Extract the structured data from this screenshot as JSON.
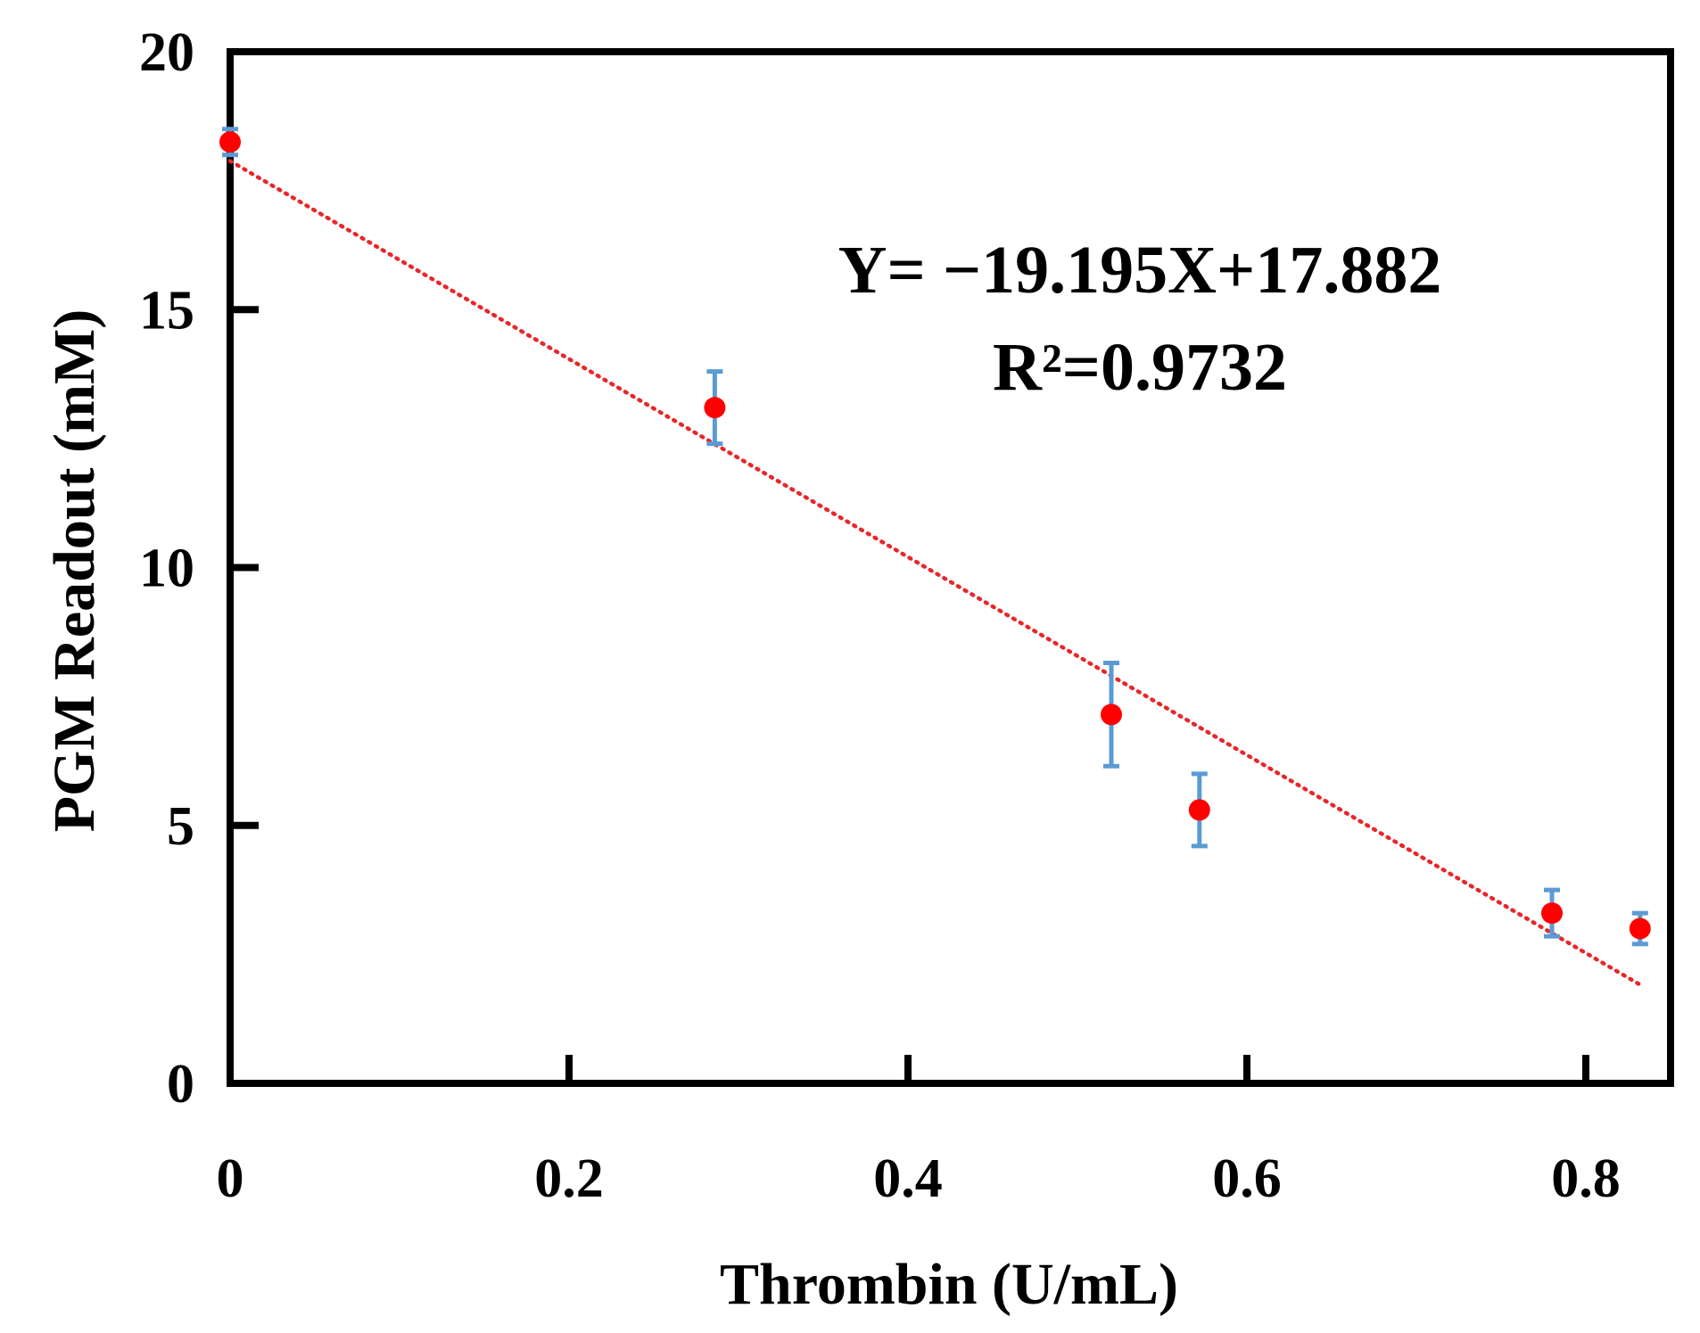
{
  "chart_data": {
    "type": "scatter",
    "xlabel": "Thrombin (U/mL)",
    "ylabel": "PGM Readout (mM)",
    "xlim": [
      0,
      0.85
    ],
    "ylim": [
      0,
      20
    ],
    "x_ticks": [
      0,
      0.2,
      0.4,
      0.6,
      0.8
    ],
    "x_tick_labels": [
      "0",
      "0.2",
      "0.4",
      "0.6",
      "0.8"
    ],
    "y_ticks": [
      0,
      5,
      10,
      15,
      20
    ],
    "y_tick_labels": [
      "0",
      "5",
      "10",
      "15",
      "20"
    ],
    "series": [
      {
        "name": "PGM readout",
        "x": [
          0,
          0.286,
          0.52,
          0.572,
          0.78,
          0.832
        ],
        "y": [
          18.25,
          13.1,
          7.15,
          5.3,
          3.3,
          3.0
        ],
        "error": [
          0.25,
          0.7,
          1.0,
          0.7,
          0.45,
          0.3
        ],
        "marker_color": "#ff0000",
        "error_color": "#5b9bd5"
      }
    ],
    "trendline": {
      "type": "linear",
      "slope": -19.195,
      "intercept": 17.882,
      "x_range": [
        0,
        0.832
      ],
      "color": "#e8262a",
      "style": "dotted"
    },
    "annotations": [
      "Y= −19.195X+17.882",
      "R²=0.9732"
    ]
  }
}
